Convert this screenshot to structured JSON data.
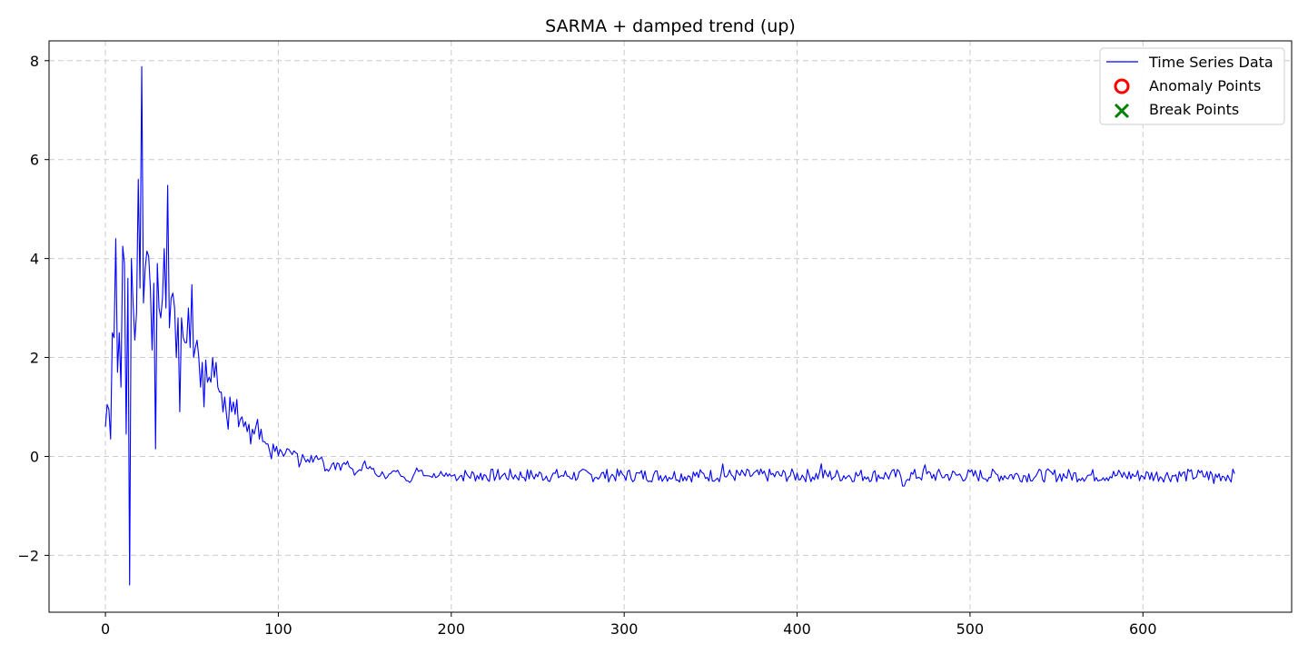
{
  "chart_data": {
    "type": "line",
    "title": "SARMA + damped trend (up)",
    "xlabel": "",
    "ylabel": "",
    "xlim": [
      -32.6,
      686
    ],
    "ylim": [
      -3.15,
      8.4
    ],
    "xticks": [
      0,
      100,
      200,
      300,
      400,
      500,
      600
    ],
    "yticks": [
      -2,
      0,
      2,
      4,
      6,
      8
    ],
    "ytick_labels": [
      "−2",
      "0",
      "2",
      "4",
      "6",
      "8"
    ],
    "grid": true,
    "legend_position": "top-right",
    "colors": {
      "series": "#0000ff",
      "anomaly": "#ff0000",
      "break": "#008000"
    },
    "legend": [
      {
        "label": "Time Series Data",
        "marker": "line"
      },
      {
        "label": "Anomaly Points",
        "marker": "circle"
      },
      {
        "label": "Break Points",
        "marker": "x"
      }
    ],
    "series": [
      {
        "name": "Time Series Data",
        "anchors": [
          [
            0,
            0.6
          ],
          [
            1,
            1.05
          ],
          [
            2,
            0.95
          ],
          [
            3,
            0.35
          ],
          [
            4,
            2.5
          ],
          [
            5,
            2.4
          ],
          [
            6,
            4.4
          ],
          [
            7,
            1.7
          ],
          [
            8,
            2.5
          ],
          [
            9,
            1.4
          ],
          [
            10,
            4.25
          ],
          [
            11,
            3.9
          ],
          [
            12,
            0.45
          ],
          [
            13,
            3.6
          ],
          [
            14,
            -2.6
          ],
          [
            15,
            4.0
          ],
          [
            16,
            3.1
          ],
          [
            17,
            2.35
          ],
          [
            18,
            2.9
          ],
          [
            19,
            5.6
          ],
          [
            20,
            3.4
          ],
          [
            21,
            7.88
          ],
          [
            22,
            3.1
          ],
          [
            23,
            3.8
          ],
          [
            24,
            4.15
          ],
          [
            25,
            4.05
          ],
          [
            26,
            3.4
          ],
          [
            27,
            2.15
          ],
          [
            28,
            3.5
          ],
          [
            29,
            0.15
          ],
          [
            30,
            3.9
          ],
          [
            31,
            3.0
          ],
          [
            32,
            2.8
          ],
          [
            33,
            3.2
          ],
          [
            34,
            4.2
          ],
          [
            35,
            3.0
          ],
          [
            36,
            5.48
          ],
          [
            37,
            2.6
          ],
          [
            38,
            3.2
          ],
          [
            39,
            3.3
          ],
          [
            40,
            3.0
          ],
          [
            41,
            2.0
          ],
          [
            42,
            2.8
          ],
          [
            43,
            0.9
          ],
          [
            44,
            2.8
          ],
          [
            45,
            2.4
          ],
          [
            46,
            2.3
          ],
          [
            47,
            2.3
          ],
          [
            48,
            3.0
          ],
          [
            49,
            2.2
          ],
          [
            50,
            3.47
          ],
          [
            51,
            2.0
          ],
          [
            52,
            2.2
          ],
          [
            53,
            2.35
          ],
          [
            54,
            2.0
          ],
          [
            55,
            1.4
          ],
          [
            56,
            1.9
          ],
          [
            57,
            1.0
          ],
          [
            58,
            1.95
          ],
          [
            59,
            1.5
          ],
          [
            60,
            1.6
          ],
          [
            61,
            1.5
          ],
          [
            62,
            2.0
          ],
          [
            63,
            1.6
          ],
          [
            64,
            1.9
          ],
          [
            65,
            1.4
          ],
          [
            66,
            1.3
          ],
          [
            67,
            1.3
          ],
          [
            68,
            0.9
          ],
          [
            69,
            1.2
          ],
          [
            70,
            0.85
          ],
          [
            71,
            0.55
          ],
          [
            72,
            1.2
          ],
          [
            73,
            0.9
          ],
          [
            74,
            1.1
          ],
          [
            75,
            0.85
          ],
          [
            76,
            1.15
          ],
          [
            77,
            0.6
          ],
          [
            78,
            0.75
          ],
          [
            79,
            0.8
          ],
          [
            80,
            0.6
          ],
          [
            81,
            0.7
          ],
          [
            82,
            0.5
          ],
          [
            83,
            0.65
          ],
          [
            84,
            0.25
          ],
          [
            85,
            0.55
          ],
          [
            86,
            0.45
          ],
          [
            87,
            0.6
          ],
          [
            88,
            0.75
          ],
          [
            89,
            0.35
          ],
          [
            90,
            0.55
          ],
          [
            91,
            0.3
          ],
          [
            92,
            0.3
          ],
          [
            93,
            0.25
          ],
          [
            94,
            0.25
          ],
          [
            95,
            0.1
          ],
          [
            96,
            -0.05
          ],
          [
            97,
            0.25
          ],
          [
            98,
            0.1
          ],
          [
            99,
            0.2
          ],
          [
            100,
            0.1
          ],
          [
            102,
            0.2
          ],
          [
            104,
            0.0
          ],
          [
            106,
            0.1
          ],
          [
            108,
            -0.05
          ],
          [
            110,
            0.05
          ],
          [
            112,
            -0.1
          ],
          [
            114,
            0.1
          ],
          [
            116,
            -0.05
          ],
          [
            118,
            -0.05
          ],
          [
            120,
            -0.15
          ],
          [
            124,
            -0.05
          ],
          [
            128,
            -0.25
          ],
          [
            132,
            -0.1
          ],
          [
            136,
            -0.3
          ],
          [
            140,
            -0.15
          ],
          [
            145,
            -0.3
          ],
          [
            150,
            -0.2
          ],
          [
            155,
            -0.35
          ],
          [
            160,
            -0.3
          ],
          [
            165,
            -0.4
          ],
          [
            170,
            -0.35
          ],
          [
            175,
            -0.45
          ],
          [
            180,
            -0.35
          ],
          [
            185,
            -0.4
          ],
          [
            190,
            -0.3
          ],
          [
            195,
            -0.45
          ],
          [
            200,
            -0.4
          ]
        ],
        "tail": {
          "x_start": 200,
          "x_end": 653,
          "noise_range": [
            -0.6,
            -0.15
          ],
          "spikes": [
            [
              357,
              -0.15
            ],
            [
              414,
              -0.15
            ],
            [
              474,
              -0.17
            ],
            [
              461,
              -0.6
            ],
            [
              462,
              -0.6
            ],
            [
              641,
              -0.55
            ]
          ]
        }
      }
    ],
    "anomaly_points": [],
    "break_points": []
  }
}
